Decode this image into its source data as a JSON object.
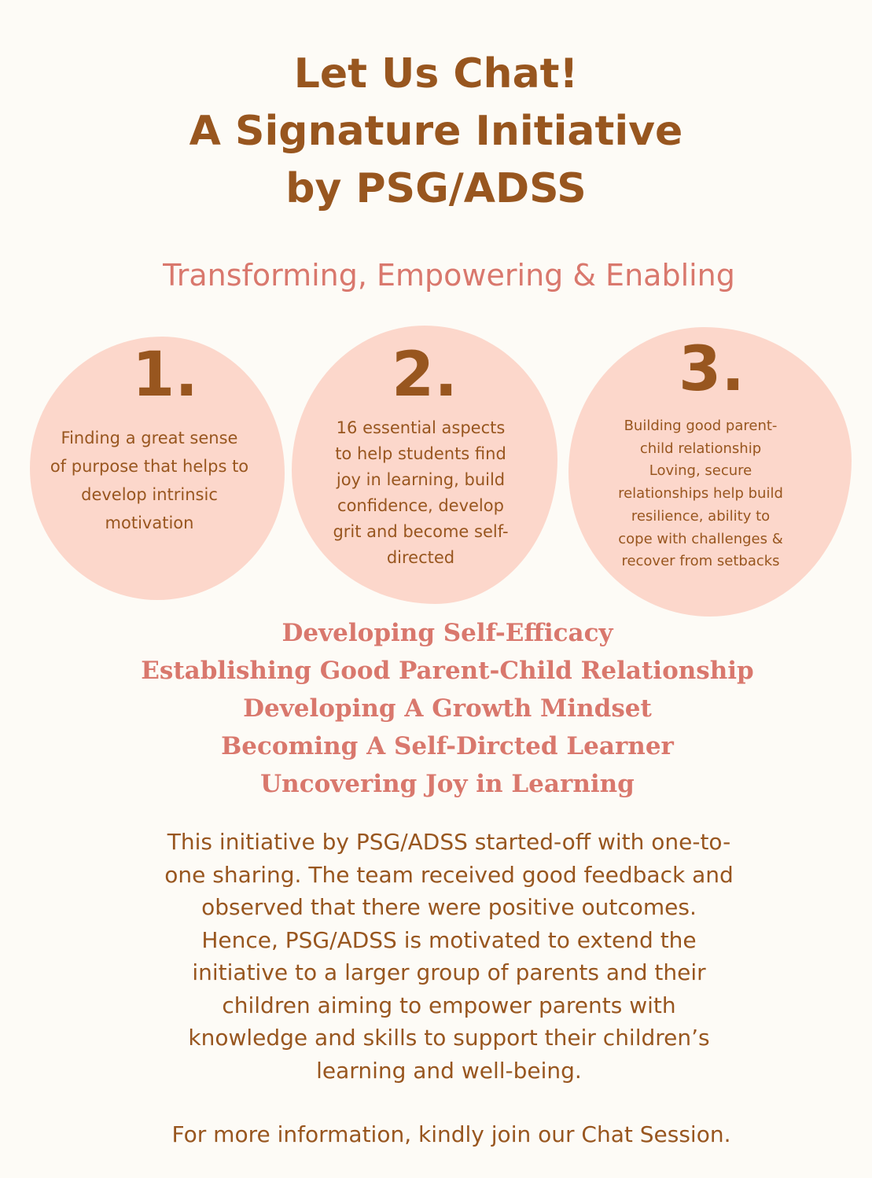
{
  "colors": {
    "background": "#fdfbf6",
    "heading_brown": "#98561f",
    "accent_salmon": "#d9786d",
    "blob_pink": "#fcd7cb"
  },
  "title": {
    "lines": [
      "Let Us Chat!",
      "A Signature Initiative",
      "by PSG/ADSS"
    ]
  },
  "subtitle": "Transforming, Empowering & Enabling",
  "points": [
    {
      "number": "1.",
      "lines": [
        "Finding a great sense",
        "of purpose that helps to",
        "develop intrinsic",
        "motivation"
      ]
    },
    {
      "number": "2.",
      "lines": [
        "16 essential aspects",
        "to help students find",
        "joy in learning, build",
        "confidence, develop",
        "grit and become self-",
        "directed"
      ]
    },
    {
      "number": "3.",
      "lines": [
        "Building good parent-",
        "child relationship",
        "Loving, secure",
        "relationships help build",
        "resilience, ability to",
        "cope with challenges &",
        "recover from setbacks"
      ]
    }
  ],
  "themes": [
    "Developing Self-Efficacy",
    "Establishing Good Parent-Child Relationship",
    "Developing A Growth Mindset",
    "Becoming A Self-Dircted Learner",
    "Uncovering Joy in Learning"
  ],
  "description_lines": [
    "This initiative by PSG/ADSS started-off with one-to-",
    "one sharing. The team received good feedback and",
    "observed that there were positive outcomes.",
    "Hence, PSG/ADSS is motivated to extend the",
    "initiative to a larger group of parents and their",
    "children aiming to empower parents with",
    "knowledge and skills to support their children’s",
    "learning and well-being."
  ],
  "footer": "For more information, kindly join our Chat Session."
}
